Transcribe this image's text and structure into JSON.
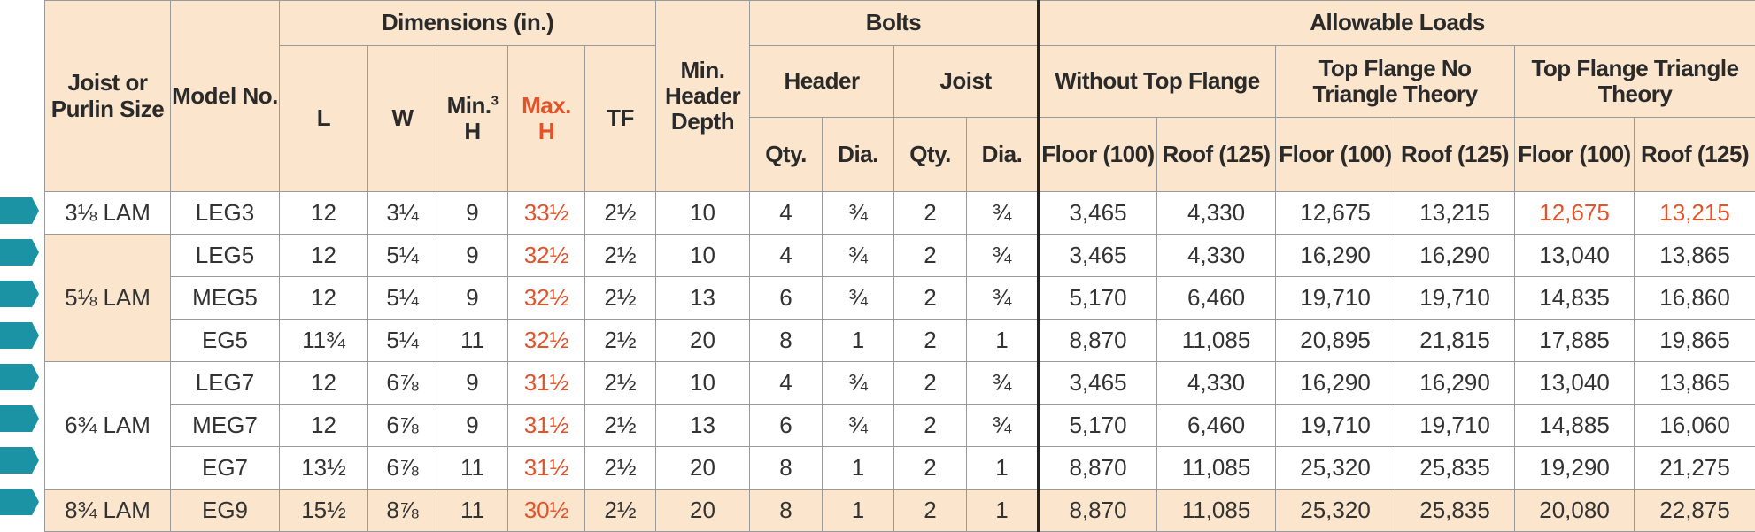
{
  "headers": {
    "joist_size": "Joist or Purlin Size",
    "model_no": "Model No.",
    "dimensions": "Dimensions (in.)",
    "L": "L",
    "W": "W",
    "min_h": "Min.",
    "min_h_sup": "3",
    "min_h_h": "H",
    "max_h": "Max.",
    "max_h_h": "H",
    "tf": "TF",
    "min_header_depth": "Min. Header Depth",
    "bolts": "Bolts",
    "header": "Header",
    "joist": "Joist",
    "qty": "Qty.",
    "dia": "Dia.",
    "allowable_loads": "Allowable Loads",
    "without_tf": "Without Top Flange",
    "tf_no_triangle": "Top Flange No Triangle Theory",
    "tf_triangle": "Top Flange Triangle Theory",
    "floor": "Floor (100)",
    "roof": "Roof (125)"
  },
  "size_groups": {
    "g1": "3⅛ LAM",
    "g2": "5⅛ LAM",
    "g3": "6¾ LAM",
    "g4": "8¾ LAM"
  },
  "rows": [
    {
      "model": "LEG3",
      "L": "12",
      "W": "3¼",
      "minH": "9",
      "maxH": "33½",
      "TF": "2½",
      "depth": "10",
      "hqty": "4",
      "hdia": "¾",
      "jqty": "2",
      "jdia": "¾",
      "wf": "3,465",
      "wr": "4,330",
      "nf": "12,675",
      "nr": "13,215",
      "tf": "12,675",
      "tr": "13,215"
    },
    {
      "model": "LEG5",
      "L": "12",
      "W": "5¼",
      "minH": "9",
      "maxH": "32½",
      "TF": "2½",
      "depth": "10",
      "hqty": "4",
      "hdia": "¾",
      "jqty": "2",
      "jdia": "¾",
      "wf": "3,465",
      "wr": "4,330",
      "nf": "16,290",
      "nr": "16,290",
      "tf": "13,040",
      "tr": "13,865"
    },
    {
      "model": "MEG5",
      "L": "12",
      "W": "5¼",
      "minH": "9",
      "maxH": "32½",
      "TF": "2½",
      "depth": "13",
      "hqty": "6",
      "hdia": "¾",
      "jqty": "2",
      "jdia": "¾",
      "wf": "5,170",
      "wr": "6,460",
      "nf": "19,710",
      "nr": "19,710",
      "tf": "14,835",
      "tr": "16,860"
    },
    {
      "model": "EG5",
      "L": "11¾",
      "W": "5¼",
      "minH": "11",
      "maxH": "32½",
      "TF": "2½",
      "depth": "20",
      "hqty": "8",
      "hdia": "1",
      "jqty": "2",
      "jdia": "1",
      "wf": "8,870",
      "wr": "11,085",
      "nf": "20,895",
      "nr": "21,815",
      "tf": "17,885",
      "tr": "19,865"
    },
    {
      "model": "LEG7",
      "L": "12",
      "W": "6⅞",
      "minH": "9",
      "maxH": "31½",
      "TF": "2½",
      "depth": "10",
      "hqty": "4",
      "hdia": "¾",
      "jqty": "2",
      "jdia": "¾",
      "wf": "3,465",
      "wr": "4,330",
      "nf": "16,290",
      "nr": "16,290",
      "tf": "13,040",
      "tr": "13,865"
    },
    {
      "model": "MEG7",
      "L": "12",
      "W": "6⅞",
      "minH": "9",
      "maxH": "31½",
      "TF": "2½",
      "depth": "13",
      "hqty": "6",
      "hdia": "¾",
      "jqty": "2",
      "jdia": "¾",
      "wf": "5,170",
      "wr": "6,460",
      "nf": "19,710",
      "nr": "19,710",
      "tf": "14,885",
      "tr": "16,060"
    },
    {
      "model": "EG7",
      "L": "13½",
      "W": "6⅞",
      "minH": "11",
      "maxH": "31½",
      "TF": "2½",
      "depth": "20",
      "hqty": "8",
      "hdia": "1",
      "jqty": "2",
      "jdia": "1",
      "wf": "8,870",
      "wr": "11,085",
      "nf": "25,320",
      "nr": "25,835",
      "tf": "19,290",
      "tr": "21,275"
    },
    {
      "model": "EG9",
      "L": "15½",
      "W": "8⅞",
      "minH": "11",
      "maxH": "30½",
      "TF": "2½",
      "depth": "20",
      "hqty": "8",
      "hdia": "1",
      "jqty": "2",
      "jdia": "1",
      "wf": "8,870",
      "wr": "11,085",
      "nf": "25,320",
      "nr": "25,835",
      "tf": "20,080",
      "tr": "22,875"
    }
  ],
  "colors": {
    "header_bg": "#fbe6cd",
    "accent_red": "#e2532a",
    "marker_teal": "#1b93a5"
  }
}
